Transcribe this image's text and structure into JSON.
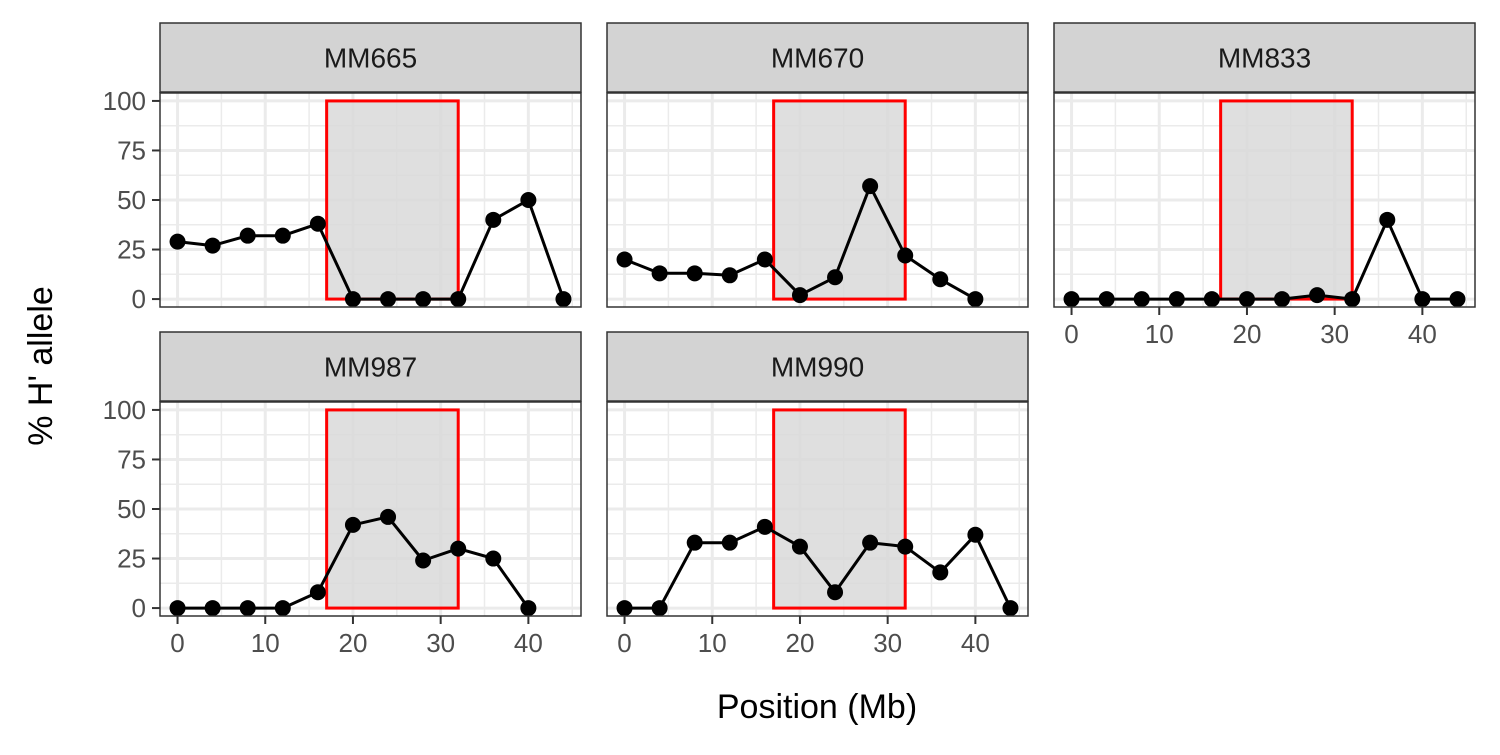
{
  "chart_data": {
    "type": "line",
    "facet_layout": "wrap",
    "xlabel": "Position (Mb)",
    "ylabel": "% H' allele",
    "xlim": [
      -2,
      46
    ],
    "ylim": [
      -4,
      104
    ],
    "xticks": [
      0,
      10,
      20,
      30,
      40
    ],
    "yticks": [
      0,
      25,
      50,
      75,
      100
    ],
    "grid": true,
    "highlight_region": {
      "x_start": 17,
      "x_end": 32,
      "y_start": 0,
      "y_end": 100
    },
    "colors": {
      "line": "#000000",
      "point": "#000000",
      "region_fill": "#d9d9d9",
      "region_border": "#ff0000",
      "strip_fill": "#d3d3d3",
      "grid": "#ebebeb",
      "axis_text": "#4d4d4d"
    },
    "panels": [
      {
        "name": "MM665",
        "x": [
          0,
          4,
          8,
          12,
          16,
          20,
          24,
          28,
          32,
          36,
          40,
          44
        ],
        "y": [
          29,
          27,
          32,
          32,
          38,
          0,
          0,
          0,
          0,
          40,
          50,
          0
        ]
      },
      {
        "name": "MM670",
        "x": [
          0,
          4,
          8,
          12,
          16,
          20,
          24,
          28,
          32,
          36,
          40
        ],
        "y": [
          20,
          13,
          13,
          12,
          20,
          2,
          11,
          57,
          22,
          10,
          0
        ]
      },
      {
        "name": "MM833",
        "x": [
          0,
          4,
          8,
          12,
          16,
          20,
          24,
          28,
          32,
          36,
          40,
          44
        ],
        "y": [
          0,
          0,
          0,
          0,
          0,
          0,
          0,
          2,
          0,
          40,
          0,
          0
        ]
      },
      {
        "name": "MM987",
        "x": [
          0,
          4,
          8,
          12,
          16,
          20,
          24,
          28,
          32,
          36,
          40
        ],
        "y": [
          0,
          0,
          0,
          0,
          8,
          42,
          46,
          24,
          30,
          25,
          0
        ]
      },
      {
        "name": "MM990",
        "x": [
          0,
          4,
          8,
          12,
          16,
          20,
          24,
          28,
          32,
          36,
          40,
          44
        ],
        "y": [
          0,
          0,
          33,
          33,
          41,
          31,
          8,
          33,
          31,
          18,
          37,
          0
        ]
      }
    ]
  }
}
